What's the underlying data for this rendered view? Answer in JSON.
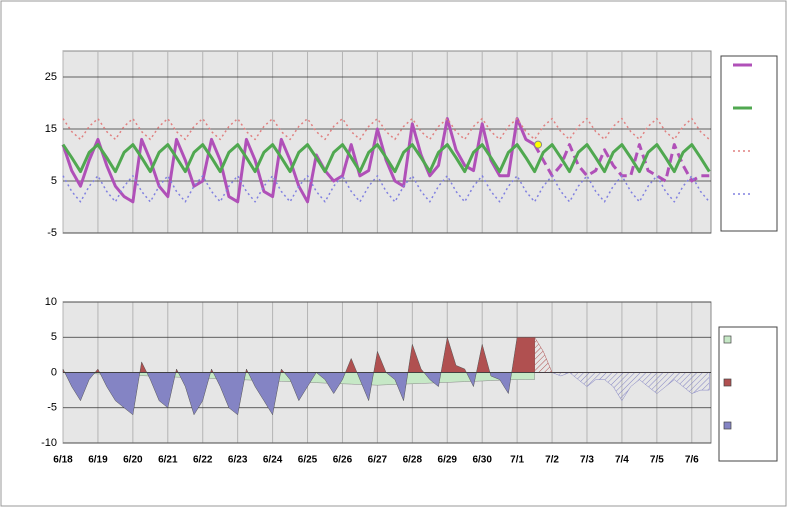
{
  "chart_data": [
    {
      "type": "line",
      "x": [
        0,
        0.25,
        0.5,
        0.75,
        1,
        1.25,
        1.5,
        1.75,
        2,
        2.25,
        2.5,
        2.75,
        3,
        3.25,
        3.5,
        3.75,
        4,
        4.25,
        4.5,
        4.75,
        5,
        5.25,
        5.5,
        5.75,
        6,
        6.25,
        6.5,
        6.75,
        7,
        7.25,
        7.5,
        7.75,
        8,
        8.25,
        8.5,
        8.75,
        9,
        9.25,
        9.5,
        9.75,
        10,
        10.25,
        10.5,
        10.75,
        11,
        11.25,
        11.5,
        11.75,
        12,
        12.25,
        12.5,
        12.75,
        13,
        13.25,
        13.5,
        13.75,
        14,
        14.25,
        14.5,
        14.75,
        15,
        15.25,
        15.5,
        15.75,
        16,
        16.25,
        16.5,
        16.75,
        17,
        17.25,
        17.5,
        17.75,
        18,
        18.25,
        18.5
      ],
      "xlim": [
        0,
        18.55
      ],
      "ylim": [
        -5,
        30
      ],
      "yticks": [
        -5,
        5,
        15,
        25
      ],
      "grid": true,
      "legend": "right",
      "series": [
        {
          "color": "#b050b8",
          "width": 3,
          "values": [
            12,
            7,
            4,
            9,
            13,
            8,
            4,
            2,
            1,
            13,
            9,
            4,
            2,
            13,
            9,
            4,
            5,
            13,
            9,
            2,
            1,
            13,
            9,
            3,
            2,
            13,
            9,
            4,
            1,
            10,
            7,
            5,
            6,
            12,
            6,
            7,
            15,
            9,
            5,
            4,
            16,
            10,
            6,
            8,
            17,
            11,
            8,
            7,
            16,
            9,
            6,
            6,
            17,
            13,
            12,
            null,
            null,
            null,
            null,
            null,
            null,
            null,
            null,
            null,
            null,
            null,
            null,
            null,
            null,
            null,
            null,
            null,
            null,
            null,
            null
          ],
          "forecast": [
            null,
            null,
            null,
            null,
            null,
            null,
            null,
            null,
            null,
            null,
            null,
            null,
            null,
            null,
            null,
            null,
            null,
            null,
            null,
            null,
            null,
            null,
            null,
            null,
            null,
            null,
            null,
            null,
            null,
            null,
            null,
            null,
            null,
            null,
            null,
            null,
            null,
            null,
            null,
            null,
            null,
            null,
            null,
            null,
            null,
            null,
            null,
            null,
            null,
            null,
            null,
            null,
            null,
            null,
            12,
            9,
            6,
            8,
            12,
            8,
            6,
            7,
            11,
            8,
            6,
            6,
            12,
            7,
            6,
            5,
            12,
            8,
            5,
            6,
            6
          ]
        },
        {
          "color": "#50a850",
          "width": 3,
          "values": [
            12,
            9.5,
            6.8,
            10.5,
            12,
            9.5,
            6.8,
            10.5,
            12,
            9.5,
            6.8,
            10.5,
            12,
            9.5,
            6.8,
            10.5,
            12,
            9.5,
            6.8,
            10.5,
            12,
            9.5,
            6.8,
            10.5,
            12,
            9.5,
            6.8,
            10.5,
            12,
            9.5,
            6.8,
            10.5,
            12,
            9.5,
            6.8,
            10.5,
            12,
            9.5,
            6.8,
            10.5,
            12,
            9.5,
            6.8,
            10.5,
            12,
            9.5,
            6.8,
            10.5,
            12,
            9.5,
            6.8,
            10.5,
            12,
            9.5,
            6.8,
            10.5,
            12,
            9.5,
            6.8,
            10.5,
            12,
            9.5,
            6.8,
            10.5,
            12,
            9.5,
            6.8,
            10.5,
            12,
            9.5,
            6.8,
            10.5,
            12,
            9.5,
            6.8
          ]
        },
        {
          "color": "#e08080",
          "width": 1.5,
          "style": "dotted",
          "values": [
            17,
            14.5,
            13,
            15.5,
            17,
            14.5,
            13,
            15.5,
            17,
            14.5,
            13,
            15.5,
            17,
            14.5,
            13,
            15.5,
            17,
            14.5,
            13,
            15.5,
            17,
            14.5,
            13,
            15.5,
            17,
            14.5,
            13,
            15.5,
            17,
            14.5,
            13,
            15.5,
            17,
            14.5,
            13,
            15.5,
            17,
            14.5,
            13,
            15.5,
            17,
            14.5,
            13,
            15.5,
            17,
            14.5,
            13,
            15.5,
            17,
            14.5,
            13,
            15.5,
            17,
            14.5,
            13,
            15.5,
            17,
            14.5,
            13,
            15.5,
            17,
            14.5,
            13,
            15.5,
            17,
            14.5,
            13,
            15.5,
            17,
            14.5,
            13,
            15.5,
            17,
            14.5,
            13
          ]
        },
        {
          "color": "#8080e0",
          "width": 1.5,
          "style": "dotted",
          "values": [
            6,
            3,
            1,
            4,
            6,
            3,
            1,
            4,
            6,
            3,
            1,
            4,
            6,
            3,
            1,
            4,
            6,
            3,
            1,
            4,
            6,
            3,
            1,
            4,
            6,
            3,
            1,
            4,
            6,
            3,
            1,
            4,
            6,
            3,
            1,
            4,
            6,
            3,
            1,
            4,
            6,
            3,
            1,
            4,
            6,
            3,
            1,
            4,
            6,
            3,
            1,
            4,
            6,
            3,
            1,
            4,
            6,
            3,
            1,
            4,
            6,
            3,
            1,
            4,
            6,
            3,
            1,
            4,
            6,
            3,
            1,
            4,
            6,
            3,
            1
          ]
        }
      ],
      "marker": {
        "x": 13.6,
        "value": 12,
        "color": "#ffff00"
      }
    },
    {
      "type": "area",
      "x": [
        0,
        0.25,
        0.5,
        0.75,
        1,
        1.25,
        1.5,
        1.75,
        2,
        2.25,
        2.5,
        2.75,
        3,
        3.25,
        3.5,
        3.75,
        4,
        4.25,
        4.5,
        4.75,
        5,
        5.25,
        5.5,
        5.75,
        6,
        6.25,
        6.5,
        6.75,
        7,
        7.25,
        7.5,
        7.75,
        8,
        8.25,
        8.5,
        8.75,
        9,
        9.25,
        9.5,
        9.75,
        10,
        10.25,
        10.5,
        10.75,
        11,
        11.25,
        11.5,
        11.75,
        12,
        12.25,
        12.5,
        12.75,
        13,
        13.25,
        13.5,
        13.75,
        14,
        14.25,
        14.5,
        14.75,
        15,
        15.25,
        15.5,
        15.75,
        16,
        16.25,
        16.5,
        16.75,
        17,
        17.25,
        17.5,
        17.75,
        18,
        18.25,
        18.5
      ],
      "xlim": [
        0,
        18.55
      ],
      "xticks": [
        {
          "value": 0,
          "label": "6/18"
        },
        {
          "value": 1,
          "label": "6/19"
        },
        {
          "value": 2,
          "label": "6/20"
        },
        {
          "value": 3,
          "label": "6/21"
        },
        {
          "value": 4,
          "label": "6/22"
        },
        {
          "value": 5,
          "label": "6/23"
        },
        {
          "value": 6,
          "label": "6/24"
        },
        {
          "value": 7,
          "label": "6/25"
        },
        {
          "value": 8,
          "label": "6/26"
        },
        {
          "value": 9,
          "label": "6/27"
        },
        {
          "value": 10,
          "label": "6/28"
        },
        {
          "value": 11,
          "label": "6/29"
        },
        {
          "value": 12,
          "label": "6/30"
        },
        {
          "value": 13,
          "label": "7/1"
        },
        {
          "value": 14,
          "label": "7/2"
        },
        {
          "value": 15,
          "label": "7/3"
        },
        {
          "value": 16,
          "label": "7/4"
        },
        {
          "value": 17,
          "label": "7/5"
        },
        {
          "value": 18,
          "label": "7/6"
        }
      ],
      "ylim": [
        -10,
        10
      ],
      "yticks": [
        -10,
        -5,
        0,
        5,
        10
      ],
      "grid": true,
      "legend": "right",
      "series": [
        {
          "color": "#c6e8c6",
          "values": [
            0,
            -0.05,
            -0.1,
            -0.15,
            -0.2,
            -0.25,
            -0.3,
            -0.35,
            -0.4,
            -0.45,
            -0.5,
            -0.55,
            -0.6,
            -0.65,
            -0.7,
            -0.75,
            -0.8,
            -0.85,
            -0.9,
            -0.95,
            -1,
            -1.05,
            -1.1,
            -1.15,
            -1.2,
            -1.25,
            -1.3,
            -1.35,
            -1.4,
            -1.45,
            -1.5,
            -1.55,
            -1.6,
            -1.65,
            -1.7,
            -1.75,
            -1.8,
            -1.75,
            -1.7,
            -1.65,
            -1.6,
            -1.55,
            -1.5,
            -1.45,
            -1.4,
            -1.35,
            -1.3,
            -1.25,
            -1.2,
            -1.15,
            -1.1,
            -1.05,
            -1,
            -1,
            -1,
            null,
            null,
            null,
            null,
            null,
            null,
            null,
            null,
            null,
            null,
            null,
            null,
            null,
            null,
            null,
            null,
            null,
            null,
            null,
            null
          ]
        },
        {
          "color": "#b05050",
          "negative_color": "#8484c4",
          "values": [
            0.5,
            -2,
            -4,
            -1,
            0.5,
            -2,
            -4,
            -5,
            -6,
            1.5,
            -1,
            -4,
            -5,
            0.5,
            -2,
            -6,
            -4,
            0.5,
            -2,
            -5,
            -6,
            0.5,
            -2,
            -4,
            -6,
            0.5,
            -1,
            -4,
            -2,
            0,
            -1,
            -3,
            -1,
            2,
            -1,
            -4,
            3,
            0,
            -1,
            -4,
            4,
            0.5,
            -1,
            -2,
            5,
            1,
            0.5,
            -2,
            4,
            -0.5,
            -1,
            -3,
            5,
            5,
            5,
            null,
            null,
            null,
            null,
            null,
            null,
            null,
            null,
            null,
            null,
            null,
            null,
            null,
            null,
            null,
            null,
            null,
            null,
            null,
            null
          ],
          "forecast": [
            null,
            null,
            null,
            null,
            null,
            null,
            null,
            null,
            null,
            null,
            null,
            null,
            null,
            null,
            null,
            null,
            null,
            null,
            null,
            null,
            null,
            null,
            null,
            null,
            null,
            null,
            null,
            null,
            null,
            null,
            null,
            null,
            null,
            null,
            null,
            null,
            null,
            null,
            null,
            null,
            null,
            null,
            null,
            null,
            null,
            null,
            null,
            null,
            null,
            null,
            null,
            null,
            null,
            null,
            5,
            3,
            0,
            -0.5,
            0,
            -1,
            -2,
            -1,
            -1,
            -2,
            -4,
            -2,
            -1,
            -2,
            -3,
            -2,
            -1,
            -2,
            -3,
            -2.5,
            -2.5
          ]
        }
      ]
    }
  ]
}
